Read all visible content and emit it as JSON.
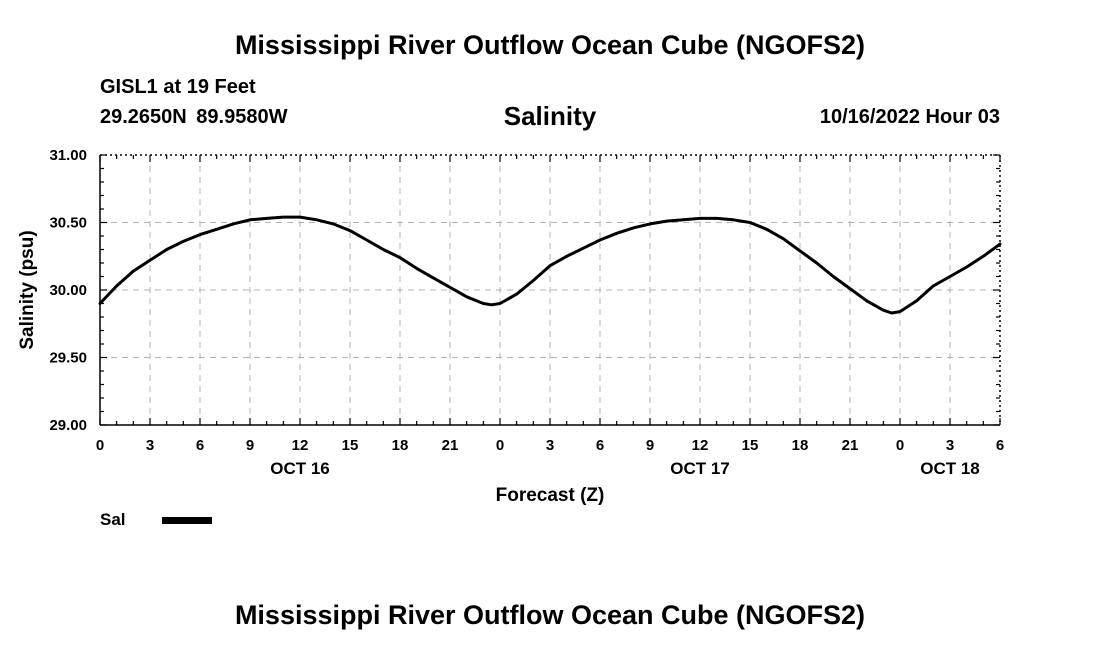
{
  "header": {
    "title": "Mississippi River Outflow Ocean Cube (NGOFS2)",
    "station": "GISL1 at 19 Feet",
    "coords": "29.2650N  89.9580W",
    "chart_title": "Salinity",
    "datetime": "10/16/2022 Hour 03"
  },
  "footer": {
    "title": "Mississippi River Outflow Ocean Cube (NGOFS2)"
  },
  "legend": {
    "label": "Sal",
    "color": "#000000"
  },
  "chart_data": {
    "type": "line",
    "title": "Salinity",
    "xlabel": "Forecast (Z)",
    "ylabel": "Salinity (psu)",
    "xlim": [
      0,
      54
    ],
    "ylim": [
      29.0,
      31.0
    ],
    "y_ticks": [
      "29.00",
      "29.50",
      "30.00",
      "30.50",
      "31.00"
    ],
    "x_tick_labels": [
      "0",
      "3",
      "6",
      "9",
      "12",
      "15",
      "18",
      "21",
      "0",
      "3",
      "6",
      "9",
      "12",
      "15",
      "18",
      "21",
      "0",
      "3",
      "6"
    ],
    "date_labels": [
      {
        "hour": 12,
        "label": "OCT 16"
      },
      {
        "hour": 36,
        "label": "OCT 17"
      },
      {
        "hour": 51,
        "label": "OCT 18"
      }
    ],
    "grid": true,
    "legend_position": "bottom-left",
    "series": [
      {
        "name": "Sal",
        "color": "#000000",
        "x": [
          0,
          1,
          2,
          3,
          4,
          5,
          6,
          7,
          8,
          9,
          10,
          11,
          12,
          13,
          14,
          15,
          16,
          17,
          18,
          19,
          20,
          21,
          22,
          23,
          23.5,
          24,
          25,
          26,
          27,
          28,
          29,
          30,
          31,
          32,
          33,
          34,
          35,
          36,
          37,
          38,
          39,
          40,
          41,
          42,
          43,
          44,
          45,
          46,
          47,
          47.5,
          48,
          49,
          50,
          51,
          52,
          53,
          54
        ],
        "y": [
          29.9,
          30.03,
          30.14,
          30.22,
          30.3,
          30.36,
          30.41,
          30.45,
          30.49,
          30.52,
          30.53,
          30.54,
          30.54,
          30.52,
          30.49,
          30.44,
          30.37,
          30.3,
          30.24,
          30.16,
          30.09,
          30.02,
          29.95,
          29.9,
          29.89,
          29.9,
          29.97,
          30.07,
          30.18,
          30.25,
          30.31,
          30.37,
          30.42,
          30.46,
          30.49,
          30.51,
          30.52,
          30.53,
          30.53,
          30.52,
          30.5,
          30.45,
          30.38,
          30.29,
          30.2,
          30.1,
          30.01,
          29.92,
          29.85,
          29.83,
          29.84,
          29.92,
          30.03,
          30.1,
          30.17,
          30.25,
          30.34
        ]
      }
    ]
  }
}
